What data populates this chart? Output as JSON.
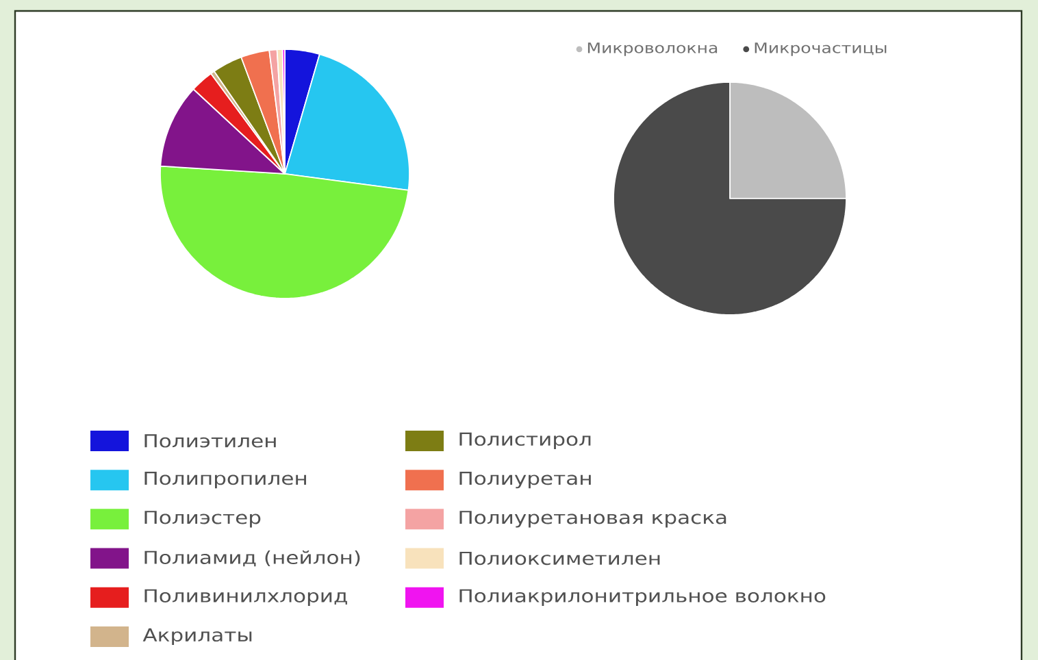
{
  "chart_data": [
    {
      "type": "pie",
      "categories": [
        "Полиэтилен",
        "Полипропилен",
        "Полиэстер",
        "Полиамид (нейлон)",
        "Поливинилхлорид",
        "Акрилаты",
        "Полистирол",
        "Полиуретан",
        "Полиуретановая краска",
        "Полиоксиметилен",
        "Полиакрилонитрильное волокно"
      ],
      "values": [
        4.5,
        22.6,
        48.9,
        10.9,
        3.0,
        0.5,
        3.9,
        3.7,
        1.0,
        0.7,
        0.3
      ],
      "colors": [
        "#1414dc",
        "#26c6f0",
        "#78f03c",
        "#82148a",
        "#e61e1e",
        "#d2b48c",
        "#7d7d14",
        "#f0704f",
        "#f4a3a3",
        "#f8e2bc",
        "#f014f0"
      ],
      "legend": "bottom"
    },
    {
      "type": "pie",
      "categories": [
        "Микроволокна",
        "Микрочастицы"
      ],
      "values": [
        25,
        75
      ],
      "colors": [
        "#bdbdbd",
        "#4a4a4a"
      ],
      "legend": "top"
    }
  ]
}
